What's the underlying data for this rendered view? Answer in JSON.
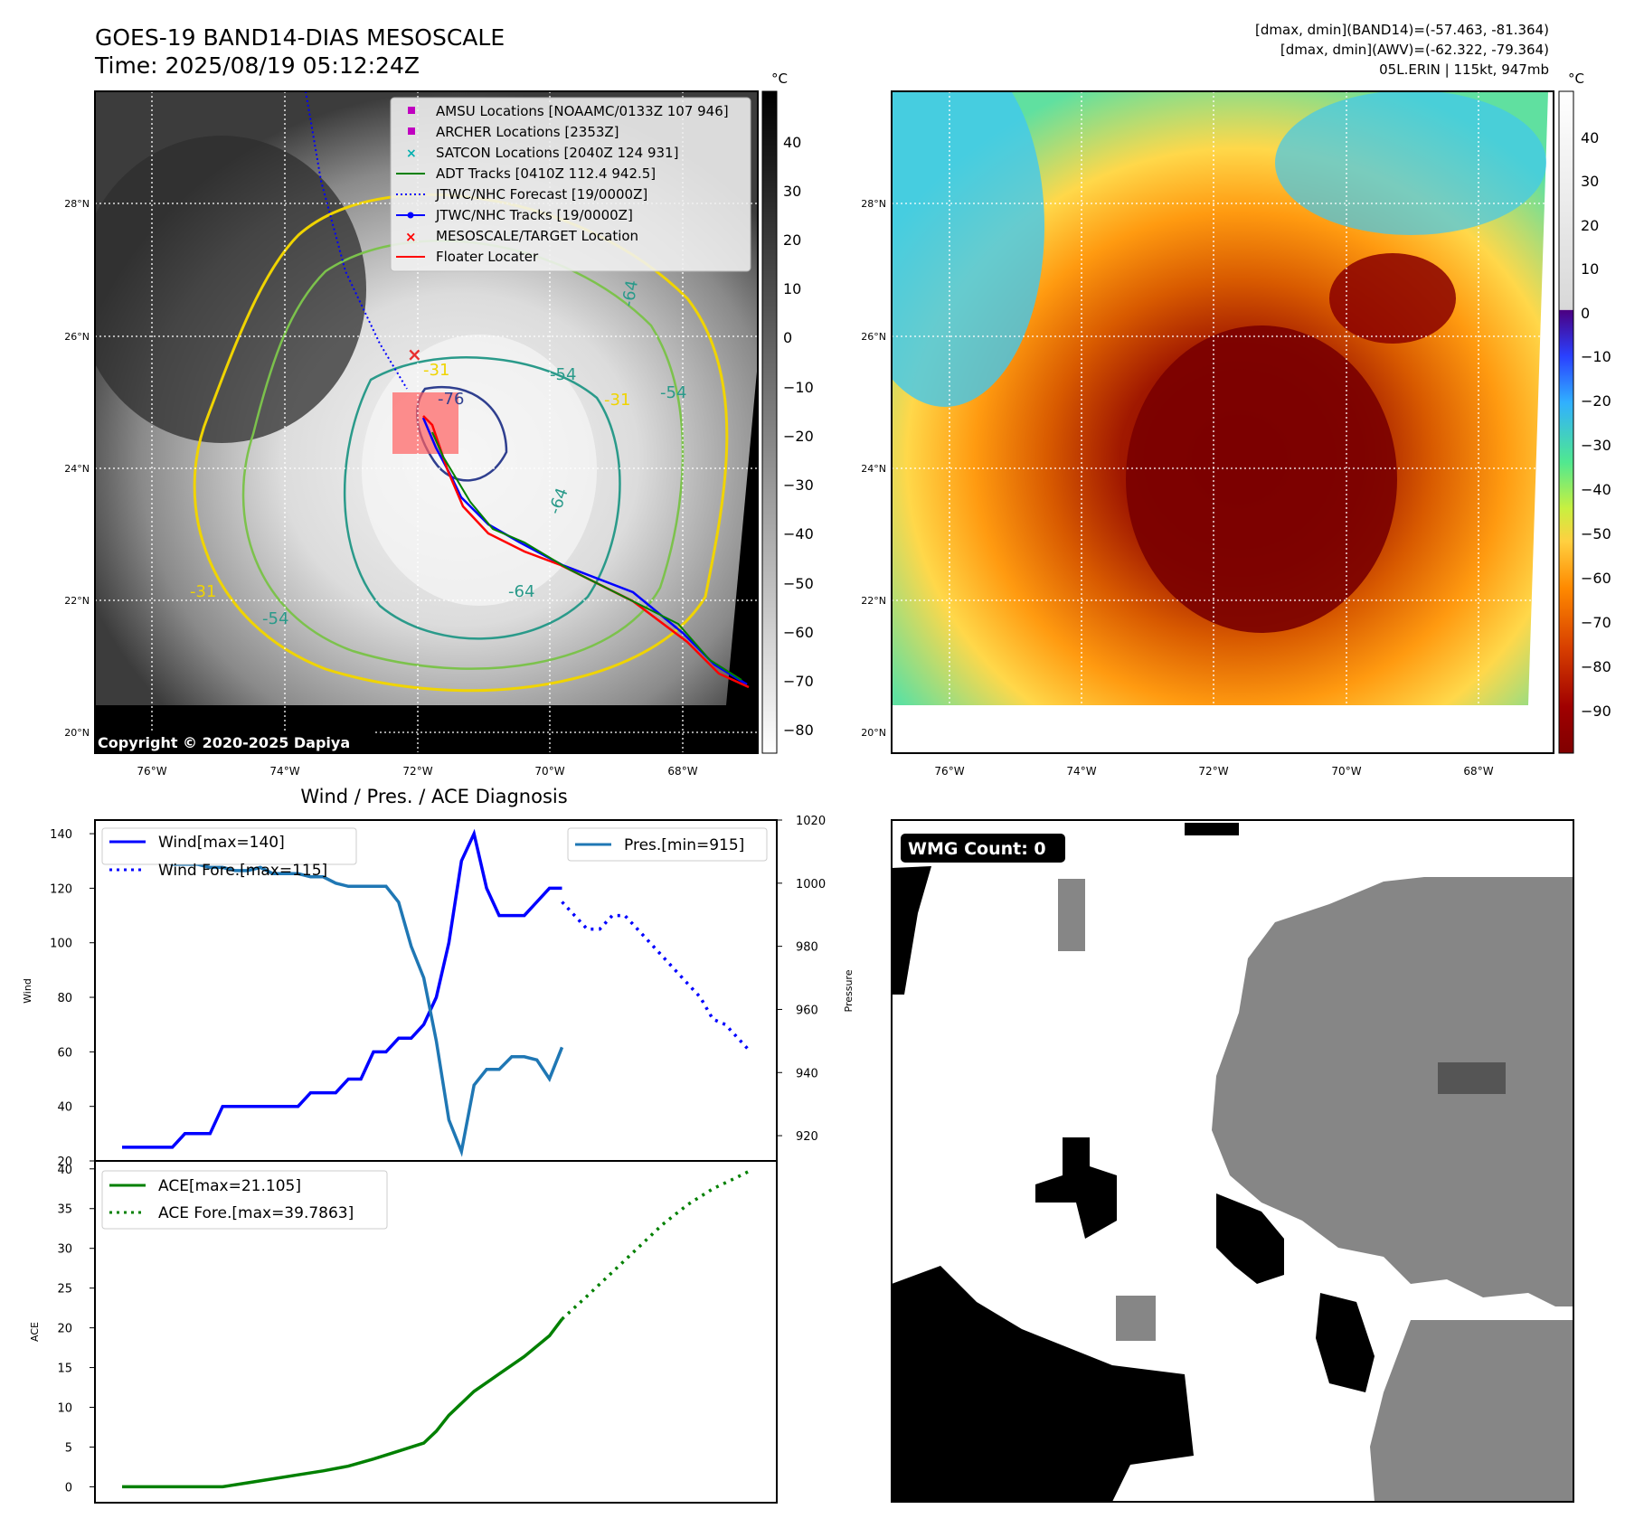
{
  "header": {
    "title_line1": "GOES-19 BAND14-DIAS MESOSCALE",
    "title_line2": "Time: 2025/08/19 05:12:24Z",
    "info_line1": "[dmax, dmin](BAND14)=(-57.463, -81.364)",
    "info_line2": "[dmax, dmin](AWV)=(-62.322, -79.364)",
    "info_line3": "05L.ERIN | 115kt, 947mb"
  },
  "maps": {
    "lon_ticks": [
      "76°W",
      "74°W",
      "72°W",
      "70°W",
      "68°W"
    ],
    "lat_ticks": [
      "28°N",
      "26°N",
      "24°N",
      "22°N",
      "20°N"
    ],
    "copyright": "Copyright © 2020-2025 Dapiya",
    "contour_labels": [
      "-76",
      "-64",
      "-64",
      "-54",
      "-54",
      "-54",
      "-64",
      "-31",
      "-31",
      "-31"
    ],
    "legend": [
      {
        "label": "AMSU Locations [NOAAMC/0133Z 107 946]",
        "marker": "square",
        "color": "#c000c0"
      },
      {
        "label": "ARCHER Locations [2353Z]",
        "marker": "square",
        "color": "#c000c0"
      },
      {
        "label": "SATCON Locations [2040Z 124 931]",
        "marker": "x",
        "color": "#00b0b0"
      },
      {
        "label": "ADT Tracks [0410Z 112.4 942.5]",
        "marker": "line",
        "color": "#008000"
      },
      {
        "label": "JTWC/NHC Forecast [19/0000Z]",
        "marker": "dotted",
        "color": "#0000ff"
      },
      {
        "label": "JTWC/NHC Tracks [19/0000Z]",
        "marker": "line-dot",
        "color": "#0000ff"
      },
      {
        "label": "MESOSCALE/TARGET Location",
        "marker": "x",
        "color": "#ff0000"
      },
      {
        "label": "Floater Locater",
        "marker": "line",
        "color": "#ff0000"
      }
    ],
    "gray_colorbar": {
      "unit": "°C",
      "ticks": [
        "40",
        "30",
        "20",
        "10",
        "0",
        "−10",
        "−20",
        "−30",
        "−40",
        "−50",
        "−60",
        "−70",
        "−80"
      ]
    },
    "color_colorbar": {
      "unit": "°C",
      "ticks": [
        "40",
        "30",
        "20",
        "10",
        "0",
        "−10",
        "−20",
        "−30",
        "−40",
        "−50",
        "−60",
        "−70",
        "−80",
        "−90"
      ]
    }
  },
  "chart_data": [
    {
      "type": "line",
      "title": "Wind / Pres. / ACE Diagnosis",
      "ylabel": "Wind",
      "ylabel_right": "Pressure",
      "ylim": [
        20,
        145
      ],
      "ylim_right": [
        912,
        1020
      ],
      "yticks": [
        20,
        40,
        60,
        80,
        100,
        120,
        140
      ],
      "yticks_right": [
        920,
        940,
        960,
        980,
        1000,
        1020
      ],
      "series": [
        {
          "name": "Wind[max=140]",
          "style": "solid",
          "color": "#0000ff",
          "axis": "left",
          "x": [
            0,
            2,
            3,
            4,
            5,
            6,
            7,
            8,
            9,
            10,
            11,
            12,
            13,
            14,
            15,
            16,
            17,
            18,
            19,
            20,
            21,
            22,
            23,
            24,
            25,
            26,
            27,
            28,
            29,
            30,
            31,
            32,
            33,
            34,
            35
          ],
          "values": [
            25,
            25,
            25,
            25,
            30,
            30,
            30,
            40,
            40,
            40,
            40,
            40,
            40,
            40,
            45,
            45,
            45,
            50,
            50,
            60,
            60,
            65,
            65,
            70,
            80,
            100,
            130,
            140,
            120,
            110,
            110,
            110,
            115,
            120,
            120
          ]
        },
        {
          "name": "Wind Fore.[max=115]",
          "style": "dotted",
          "color": "#0000ff",
          "axis": "left",
          "x": [
            35,
            36,
            37,
            38,
            39,
            40,
            41,
            42,
            43,
            44,
            45,
            46,
            47,
            48,
            49,
            50
          ],
          "values": [
            115,
            110,
            105,
            105,
            110,
            110,
            105,
            100,
            95,
            90,
            85,
            80,
            72,
            70,
            65,
            60
          ]
        },
        {
          "name": "Pres.[min=915]",
          "style": "solid",
          "color": "#1f77b4",
          "axis": "right",
          "x": [
            0,
            1,
            2,
            3,
            4,
            5,
            6,
            7,
            8,
            9,
            10,
            11,
            12,
            13,
            14,
            15,
            16,
            17,
            18,
            19,
            20,
            21,
            22,
            23,
            24,
            25,
            26,
            27,
            28,
            29,
            30,
            31,
            32,
            33,
            34,
            35
          ],
          "values": [
            1013,
            1013,
            1008,
            1007,
            1006,
            1006,
            1006,
            1005,
            1005,
            1004,
            1004,
            1005,
            1003,
            1003,
            1003,
            1002,
            1002,
            1000,
            999,
            999,
            999,
            999,
            994,
            980,
            970,
            950,
            925,
            915,
            936,
            941,
            941,
            945,
            945,
            944,
            938,
            948
          ]
        }
      ]
    },
    {
      "type": "line",
      "ylabel": "ACE",
      "ylim": [
        -2,
        41
      ],
      "yticks": [
        0,
        5,
        10,
        15,
        20,
        25,
        30,
        35,
        40
      ],
      "series": [
        {
          "name": "ACE[max=21.105]",
          "style": "solid",
          "color": "#008000",
          "x": [
            0,
            4,
            8,
            10,
            12,
            14,
            16,
            18,
            20,
            22,
            24,
            25,
            26,
            27,
            28,
            30,
            32,
            34,
            35
          ],
          "values": [
            0,
            0,
            0,
            0.5,
            1,
            1.5,
            2,
            2.6,
            3.5,
            4.5,
            5.5,
            7,
            9,
            10.5,
            12,
            14.2,
            16.4,
            19,
            21.1
          ]
        },
        {
          "name": "ACE Fore.[max=39.7863]",
          "style": "dotted",
          "color": "#008000",
          "x": [
            35,
            37,
            39,
            41,
            43,
            45,
            47,
            49,
            50
          ],
          "values": [
            21.1,
            24,
            27,
            30,
            33,
            35.5,
            37.5,
            39,
            39.8
          ]
        }
      ]
    }
  ],
  "wmg": {
    "label": "WMG Count: 0"
  }
}
